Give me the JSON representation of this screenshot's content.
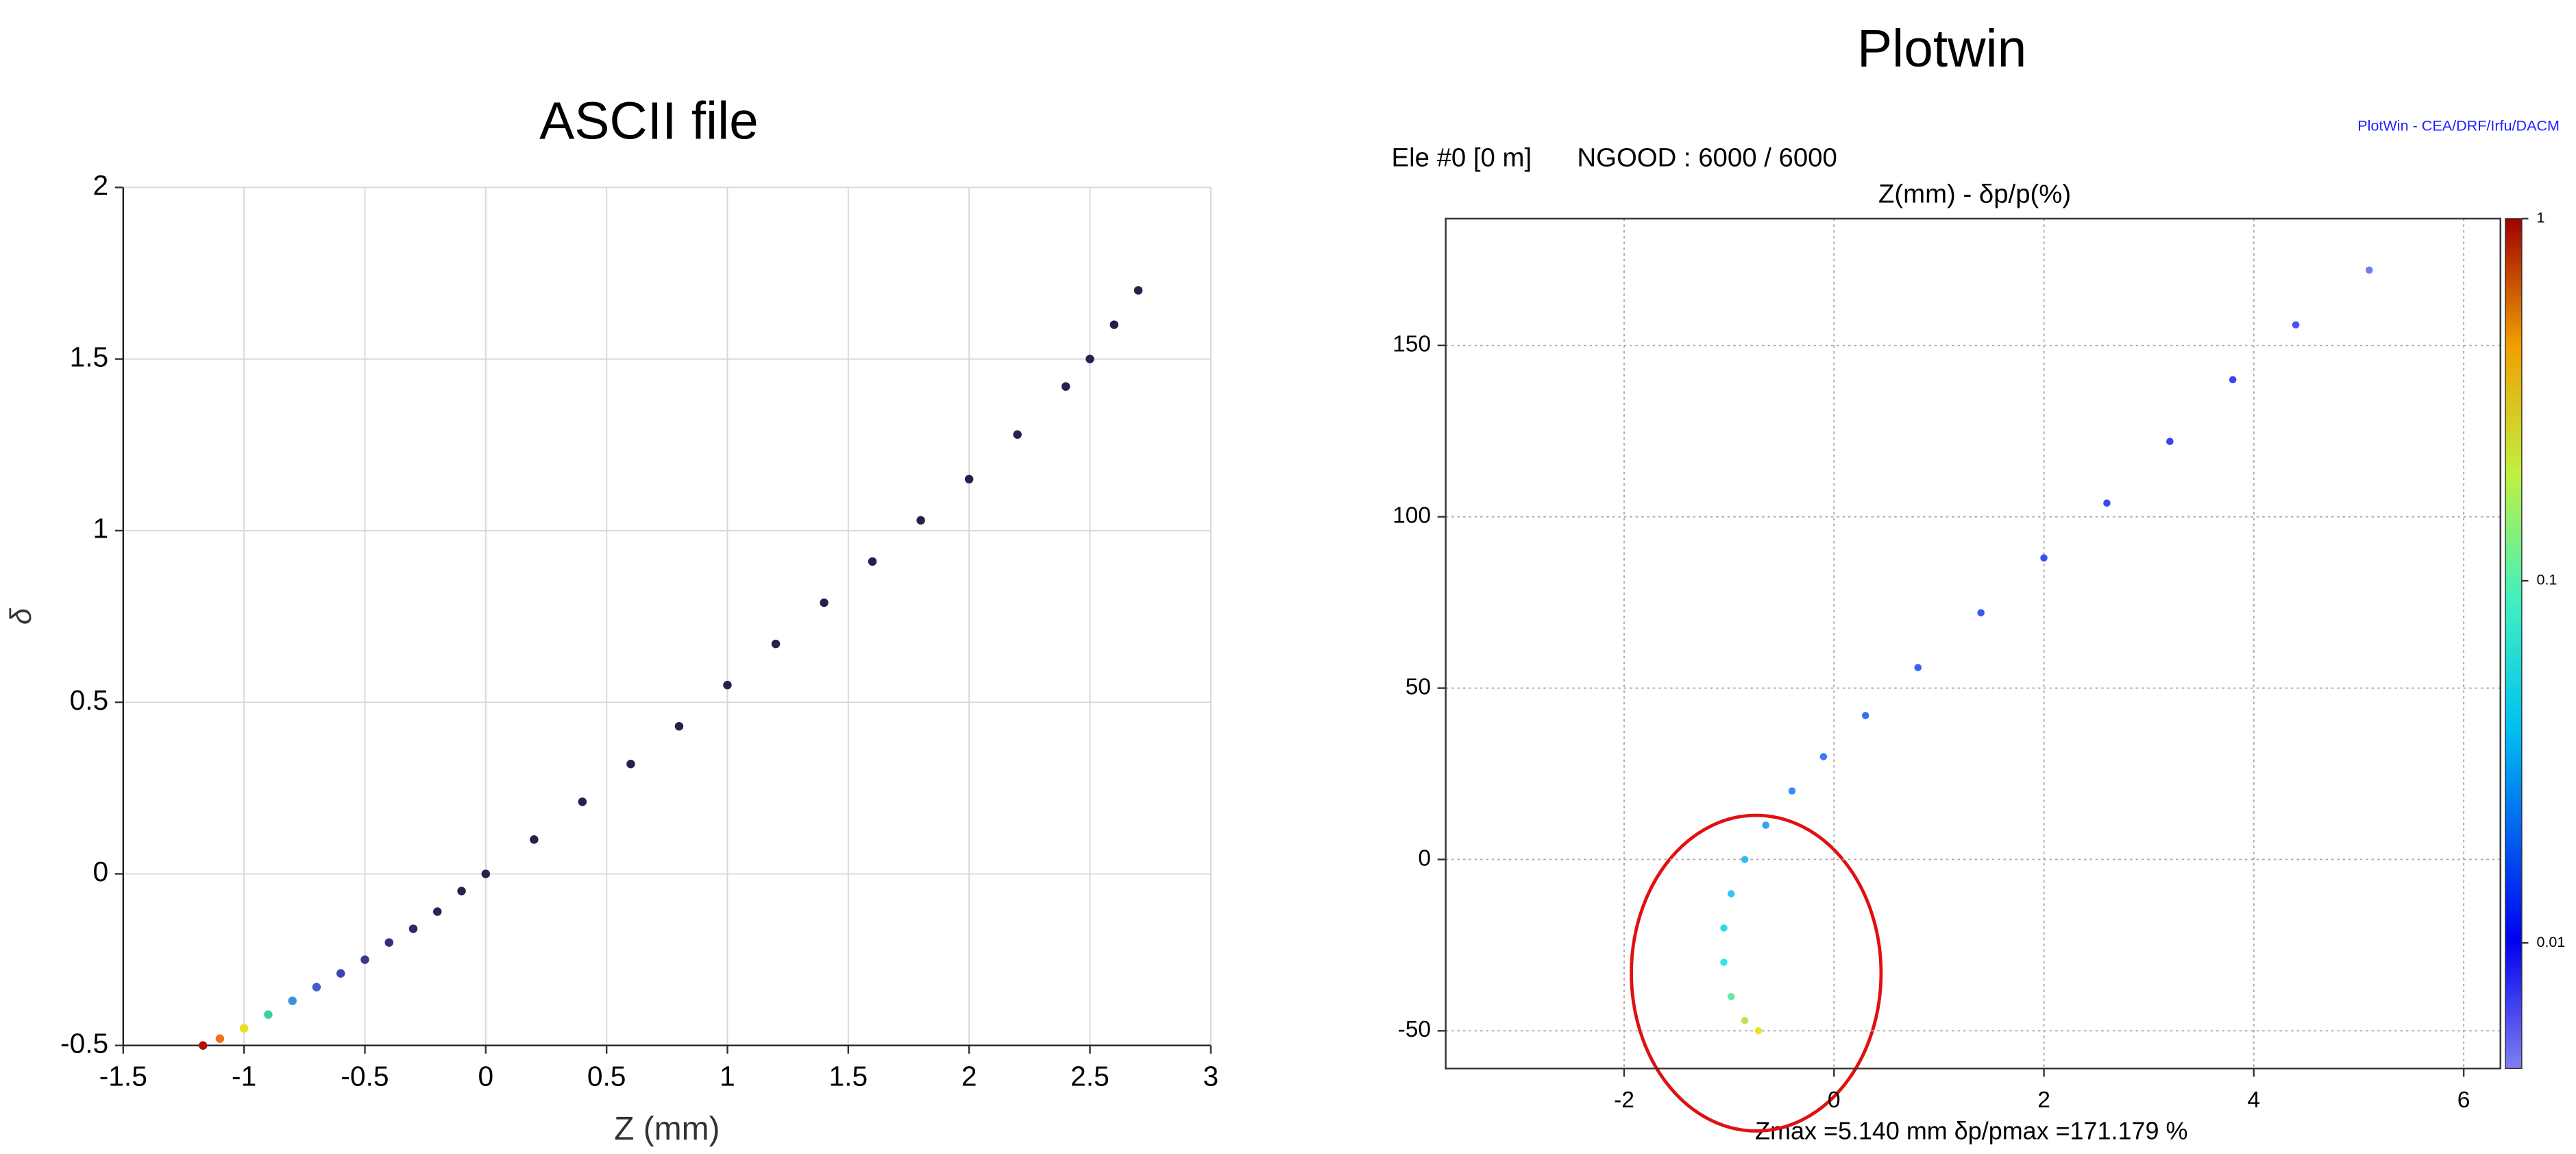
{
  "chart_data": [
    {
      "type": "scatter",
      "title": "ASCII file",
      "x_label": "Z (mm)",
      "y_label": "δ",
      "xlim": [
        -1.5,
        3
      ],
      "ylim": [
        -0.5,
        2
      ],
      "xticks": [
        -1.5,
        -1,
        -0.5,
        0,
        0.5,
        1,
        1.5,
        2,
        2.5,
        3
      ],
      "yticks": [
        -0.5,
        0,
        0.5,
        1,
        1.5,
        2
      ],
      "grid": true,
      "series": [
        {
          "x": [
            -1.17,
            -1.1,
            -1.0,
            -0.9,
            -0.8,
            -0.7,
            -0.6,
            -0.5,
            -0.4,
            -0.3,
            -0.2,
            -0.1,
            0,
            0.2,
            0.4,
            0.6,
            0.8,
            1.0,
            1.2,
            1.4,
            1.6,
            1.8,
            2.0,
            2.2,
            2.4,
            2.5,
            2.6,
            2.7
          ],
          "values": [
            -0.5,
            -0.48,
            -0.45,
            -0.41,
            -0.37,
            -0.33,
            -0.29,
            -0.25,
            -0.2,
            -0.16,
            -0.11,
            -0.05,
            0,
            0.1,
            0.21,
            0.32,
            0.43,
            0.55,
            0.67,
            0.79,
            0.91,
            1.03,
            1.15,
            1.28,
            1.42,
            1.5,
            1.6,
            1.7
          ],
          "colors": [
            "#b01010",
            "#f07020",
            "#e8e020",
            "#40d0a0",
            "#4090e0",
            "#4060d0",
            "#3a45b0",
            "#363a95",
            "#33307a",
            "#302866",
            "#2e2258",
            "#2d1f52",
            "#2b1d4e",
            "#2b1d4e",
            "#2b1d4e",
            "#2b1d4e",
            "#2b1d4e",
            "#2b1d4e",
            "#2b1d4e",
            "#2b1d4e",
            "#2b1d4e",
            "#2b1d4e",
            "#2b1d4e",
            "#2b1d4e",
            "#2b1d4e",
            "#2b1d4e",
            "#2b1d4e",
            "#2b1d4e"
          ]
        }
      ]
    },
    {
      "type": "scatter",
      "title": "Plotwin",
      "subtitle": "Z(mm) - δp/p(%)",
      "header_left": "Ele #0 [0 m]",
      "header_mid": "NGOOD : 6000 / 6000",
      "credit": "PlotWin - CEA/DRF/Irfu/DACM",
      "footer": "Zmax =5.140 mm  δp/pmax =171.179 %",
      "xlim": [
        -3.7,
        6.35
      ],
      "ylim": [
        -61,
        187
      ],
      "xticks": [
        -2,
        0,
        2,
        4,
        6
      ],
      "yticks": [
        -50,
        0,
        50,
        100,
        150
      ],
      "grid": true,
      "colorbar": {
        "scale": "log",
        "lim": [
          0.0045,
          1
        ],
        "ticks": [
          1,
          0.1,
          0.01
        ]
      },
      "series": [
        {
          "x": [
            -0.72,
            -0.85,
            -0.98,
            -1.05,
            -1.05,
            -0.98,
            -0.85,
            -0.65,
            -0.4,
            -0.1,
            0.3,
            0.8,
            1.4,
            2.0,
            2.6,
            3.2,
            3.8,
            4.4,
            5.1
          ],
          "values": [
            -50,
            -47,
            -40,
            -30,
            -20,
            -10,
            0,
            10,
            20,
            30,
            42,
            56,
            72,
            88,
            104,
            122,
            140,
            156,
            172
          ],
          "colors": [
            "#e8e020",
            "#b0e040",
            "#60e0a0",
            "#20e0e0",
            "#20d0f0",
            "#20c0f0",
            "#20b0f0",
            "#2098f0",
            "#2080f0",
            "#2070f0",
            "#2060f0",
            "#2050f0",
            "#2048f0",
            "#2040f0",
            "#2038f0",
            "#2030f0",
            "#2030f0",
            "#3040f0",
            "#6070f0"
          ]
        }
      ]
    }
  ]
}
